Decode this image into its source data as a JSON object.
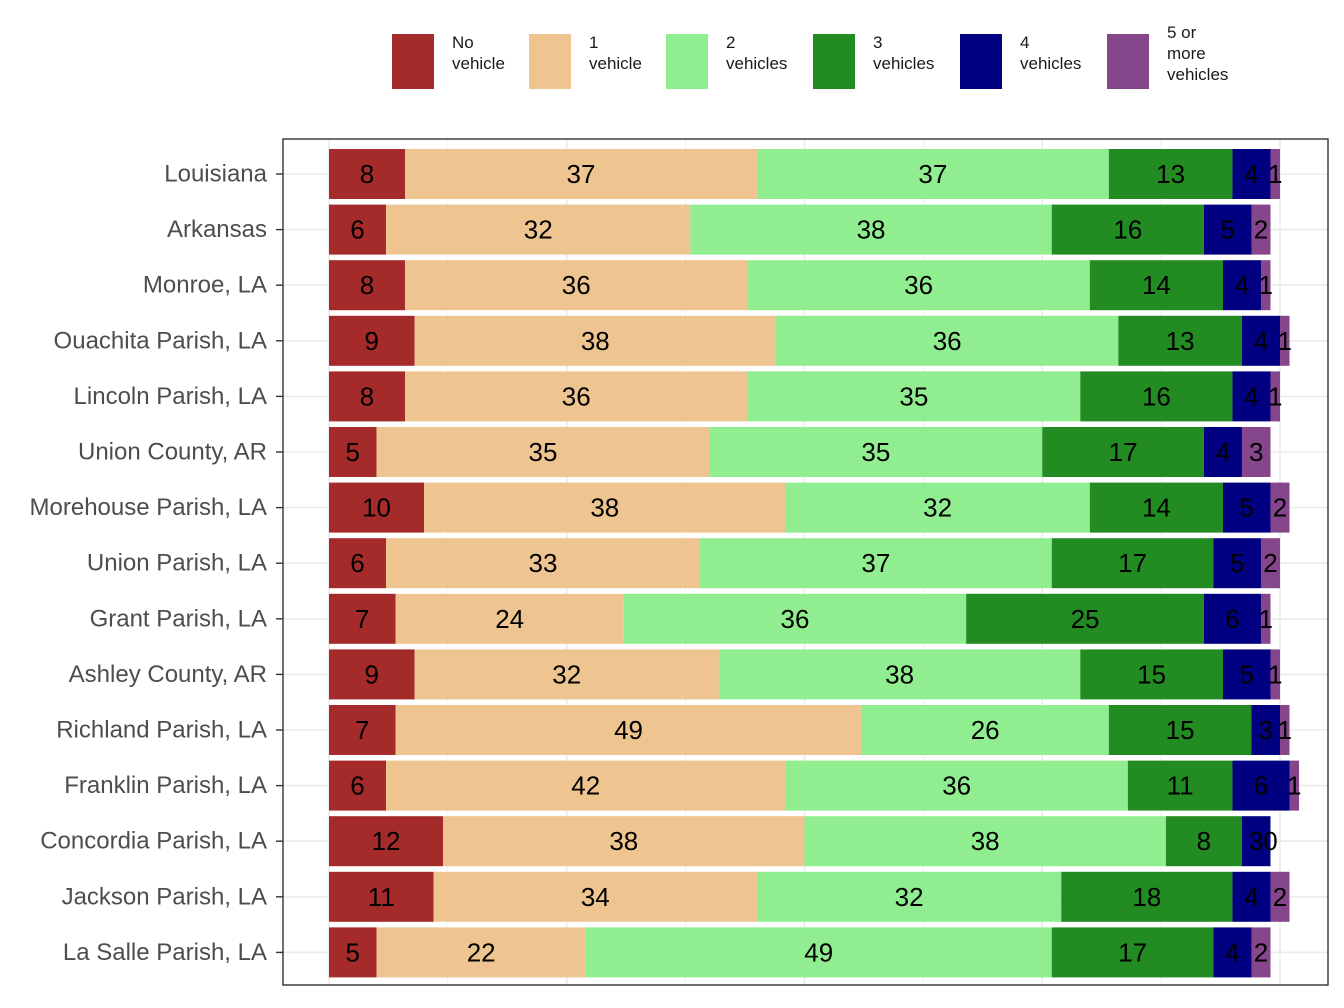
{
  "chart_data": {
    "type": "bar",
    "orientation": "horizontal",
    "stacked": true,
    "units": "percent",
    "title": "",
    "xlabel": "",
    "ylabel": "",
    "xlim": [
      0,
      100
    ],
    "grid": true,
    "legend_position": "top",
    "colors": [
      "#a52a2a",
      "#eec591",
      "#90ee90",
      "#228b22",
      "#000080",
      "#86468c"
    ],
    "legend": [
      {
        "label": "No\nvehicle"
      },
      {
        "label": "1\nvehicle"
      },
      {
        "label": "2\nvehicles"
      },
      {
        "label": "3\nvehicles"
      },
      {
        "label": "4\nvehicles"
      },
      {
        "label": "5 or\nmore\nvehicles"
      }
    ],
    "categories": [
      "Louisiana",
      "Arkansas",
      "Monroe, LA",
      "Ouachita Parish, LA",
      "Lincoln Parish, LA",
      "Union County, AR",
      "Morehouse Parish, LA",
      "Union Parish, LA",
      "Grant Parish, LA",
      "Ashley County, AR",
      "Richland Parish, LA",
      "Franklin Parish, LA",
      "Concordia Parish, LA",
      "Jackson Parish, LA",
      "La Salle Parish, LA"
    ],
    "series": [
      {
        "name": "No vehicle",
        "values": [
          8,
          6,
          8,
          9,
          8,
          5,
          10,
          6,
          7,
          9,
          7,
          6,
          12,
          11,
          5
        ]
      },
      {
        "name": "1 vehicle",
        "values": [
          37,
          32,
          36,
          38,
          36,
          35,
          38,
          33,
          24,
          32,
          49,
          42,
          38,
          34,
          22
        ]
      },
      {
        "name": "2 vehicles",
        "values": [
          37,
          38,
          36,
          36,
          35,
          35,
          32,
          37,
          36,
          38,
          26,
          36,
          38,
          32,
          49
        ]
      },
      {
        "name": "3 vehicles",
        "values": [
          13,
          16,
          14,
          13,
          16,
          17,
          14,
          17,
          25,
          15,
          15,
          11,
          8,
          18,
          17
        ]
      },
      {
        "name": "4 vehicles",
        "values": [
          4,
          5,
          4,
          4,
          4,
          4,
          5,
          5,
          6,
          5,
          3,
          6,
          3,
          4,
          4
        ]
      },
      {
        "name": "5 or more vehicles",
        "values": [
          1,
          2,
          1,
          1,
          1,
          3,
          2,
          2,
          1,
          1,
          1,
          1,
          0,
          2,
          2
        ]
      }
    ]
  }
}
